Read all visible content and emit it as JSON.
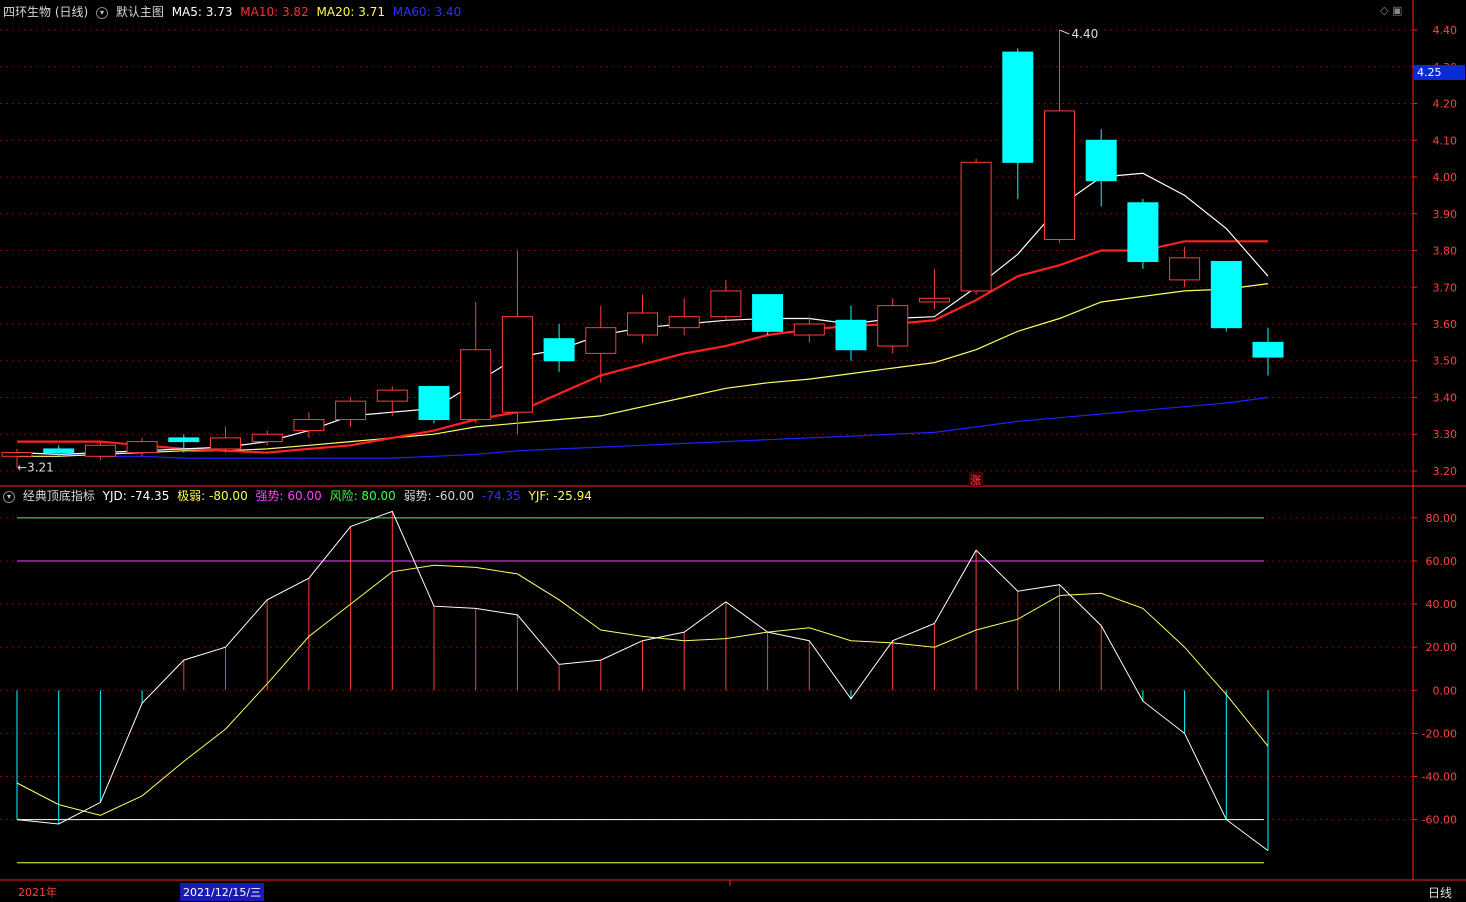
{
  "header": {
    "stock_title": "四环生物 (日线)",
    "main_chart_label": "默认主图",
    "ma5": "MA5: 3.73",
    "ma10": "MA10: 3.82",
    "ma20": "MA20: 3.71",
    "ma60": "MA60: 3.40"
  },
  "indicator": {
    "name": "经典顶底指标",
    "yjd": "YJD: -74.35",
    "jiruo": "极弱: -80.00",
    "qiangshi": "强势: 60.00",
    "fengxian": "风险: 80.00",
    "ruoshi": "弱势: -60.00",
    "unnamed": "-74.35",
    "yjf": "YJF: -25.94"
  },
  "current_price": "4.25",
  "max_label": "4.40",
  "min_label": "3.21",
  "zhang_mark": "涨",
  "footer": {
    "year": "2021年",
    "cursor_date": "2021/12/15/三",
    "period": "日线"
  },
  "colors": {
    "up": "#ff3c3c",
    "down": "#00ffff",
    "ma5": "#ffffff",
    "ma10": "#ff2020",
    "ma20": "#ffff60",
    "ma60": "#2020ff",
    "grid": "#8b0000",
    "axis": "#ff2020"
  },
  "chart_data": [
    {
      "type": "candlestick",
      "title": "四环生物 (日线)",
      "ylim": [
        3.17,
        4.46
      ],
      "yticks": [
        "3.20",
        "3.30",
        "3.40",
        "3.50",
        "3.60",
        "3.70",
        "3.80",
        "3.90",
        "4.00",
        "4.10",
        "4.20",
        "4.30",
        "4.40"
      ],
      "candles": [
        {
          "o": 3.24,
          "h": 3.26,
          "l": 3.21,
          "c": 3.25
        },
        {
          "o": 3.26,
          "h": 3.27,
          "l": 3.24,
          "c": 3.25
        },
        {
          "o": 3.24,
          "h": 3.28,
          "l": 3.23,
          "c": 3.27
        },
        {
          "o": 3.25,
          "h": 3.29,
          "l": 3.24,
          "c": 3.28
        },
        {
          "o": 3.29,
          "h": 3.3,
          "l": 3.25,
          "c": 3.28
        },
        {
          "o": 3.26,
          "h": 3.32,
          "l": 3.25,
          "c": 3.29
        },
        {
          "o": 3.28,
          "h": 3.31,
          "l": 3.27,
          "c": 3.3
        },
        {
          "o": 3.31,
          "h": 3.36,
          "l": 3.29,
          "c": 3.34
        },
        {
          "o": 3.34,
          "h": 3.4,
          "l": 3.32,
          "c": 3.39
        },
        {
          "o": 3.39,
          "h": 3.43,
          "l": 3.35,
          "c": 3.42
        },
        {
          "o": 3.43,
          "h": 3.43,
          "l": 3.33,
          "c": 3.34
        },
        {
          "o": 3.34,
          "h": 3.66,
          "l": 3.33,
          "c": 3.53
        },
        {
          "o": 3.36,
          "h": 3.8,
          "l": 3.3,
          "c": 3.62
        },
        {
          "o": 3.56,
          "h": 3.6,
          "l": 3.47,
          "c": 3.5
        },
        {
          "o": 3.52,
          "h": 3.65,
          "l": 3.44,
          "c": 3.59
        },
        {
          "o": 3.57,
          "h": 3.68,
          "l": 3.55,
          "c": 3.63
        },
        {
          "o": 3.59,
          "h": 3.67,
          "l": 3.57,
          "c": 3.62
        },
        {
          "o": 3.62,
          "h": 3.72,
          "l": 3.61,
          "c": 3.69
        },
        {
          "o": 3.68,
          "h": 3.68,
          "l": 3.57,
          "c": 3.58
        },
        {
          "o": 3.57,
          "h": 3.62,
          "l": 3.55,
          "c": 3.6
        },
        {
          "o": 3.61,
          "h": 3.65,
          "l": 3.5,
          "c": 3.53
        },
        {
          "o": 3.54,
          "h": 3.67,
          "l": 3.52,
          "c": 3.65
        },
        {
          "o": 3.66,
          "h": 3.75,
          "l": 3.64,
          "c": 3.67
        },
        {
          "o": 3.69,
          "h": 4.05,
          "l": 3.68,
          "c": 4.04
        },
        {
          "o": 4.34,
          "h": 4.35,
          "l": 3.94,
          "c": 4.04
        },
        {
          "o": 3.83,
          "h": 4.4,
          "l": 3.82,
          "c": 4.18
        },
        {
          "o": 4.1,
          "h": 4.13,
          "l": 3.92,
          "c": 3.99
        },
        {
          "o": 3.93,
          "h": 3.94,
          "l": 3.75,
          "c": 3.77
        },
        {
          "o": 3.72,
          "h": 3.81,
          "l": 3.7,
          "c": 3.78
        },
        {
          "o": 3.77,
          "h": 3.77,
          "l": 3.58,
          "c": 3.59
        },
        {
          "o": 3.55,
          "h": 3.59,
          "l": 3.46,
          "c": 3.51
        }
      ],
      "ma5": [
        3.25,
        3.245,
        3.25,
        3.255,
        3.26,
        3.265,
        3.28,
        3.31,
        3.35,
        3.36,
        3.37,
        3.44,
        3.51,
        3.53,
        3.57,
        3.59,
        3.6,
        3.61,
        3.615,
        3.615,
        3.6,
        3.615,
        3.62,
        3.7,
        3.79,
        3.92,
        4.0,
        4.01,
        3.95,
        3.86,
        3.73
      ],
      "ma10": [
        3.28,
        3.28,
        3.28,
        3.27,
        3.26,
        3.255,
        3.25,
        3.26,
        3.27,
        3.29,
        3.31,
        3.34,
        3.36,
        3.41,
        3.46,
        3.49,
        3.52,
        3.54,
        3.57,
        3.585,
        3.595,
        3.6,
        3.61,
        3.665,
        3.73,
        3.76,
        3.8,
        3.8,
        3.825,
        3.825,
        3.825
      ],
      "ma20": [
        3.24,
        3.24,
        3.245,
        3.25,
        3.255,
        3.255,
        3.26,
        3.27,
        3.28,
        3.29,
        3.3,
        3.32,
        3.33,
        3.34,
        3.35,
        3.375,
        3.4,
        3.425,
        3.44,
        3.45,
        3.465,
        3.48,
        3.495,
        3.53,
        3.58,
        3.615,
        3.66,
        3.675,
        3.69,
        3.695,
        3.71
      ],
      "ma60": [
        3.25,
        3.245,
        3.24,
        3.24,
        3.235,
        3.235,
        3.235,
        3.235,
        3.235,
        3.235,
        3.24,
        3.245,
        3.255,
        3.26,
        3.265,
        3.27,
        3.275,
        3.28,
        3.285,
        3.29,
        3.295,
        3.3,
        3.305,
        3.32,
        3.335,
        3.345,
        3.355,
        3.365,
        3.375,
        3.385,
        3.4
      ]
    },
    {
      "type": "line",
      "title": "经典顶底指标",
      "ylim": [
        -88,
        92
      ],
      "yticks": [
        "80.00",
        "60.00",
        "40.00",
        "20.00",
        "0.00",
        "-20.00",
        "-40.00",
        "-60.00"
      ],
      "hlines": [
        {
          "name": "风险",
          "value": 80
        },
        {
          "name": "强势",
          "value": 60
        },
        {
          "name": "弱势",
          "value": -60
        },
        {
          "name": "极弱",
          "value": -80
        }
      ],
      "series": [
        {
          "name": "YJD",
          "values": [
            -60,
            -62,
            -52,
            -6,
            14,
            20,
            42,
            52,
            76,
            83,
            39,
            38,
            35,
            12,
            14,
            23,
            27,
            41,
            27,
            23,
            -4,
            23,
            31,
            65,
            46,
            49,
            30,
            -5,
            -20,
            -60,
            -74.35
          ]
        },
        {
          "name": "YJF",
          "values": [
            -43,
            -53,
            -58,
            -49,
            -33,
            -18,
            3,
            25,
            40,
            55,
            58,
            57,
            54,
            42,
            28,
            25,
            23,
            24,
            27,
            29,
            23,
            22,
            20,
            28,
            33,
            44,
            45,
            38,
            20,
            -2,
            -25.94
          ]
        }
      ]
    }
  ]
}
